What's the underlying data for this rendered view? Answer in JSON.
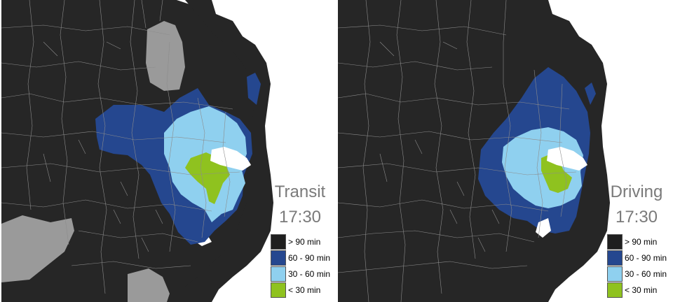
{
  "colors": {
    "background": "#262626",
    "water": "#ffffff",
    "boundary": "#8c8c8c",
    "grey_land": "#9a9a9a",
    "gt90": "#1f1f1f",
    "c60_90": "#25478f",
    "c30_60": "#8fd0ef",
    "lt30": "#8fc21f"
  },
  "maps": [
    {
      "id": "transit",
      "mode_title": "Transit",
      "time": "17:30"
    },
    {
      "id": "driving",
      "mode_title": "Driving",
      "time": "17:30"
    }
  ],
  "legend": {
    "items": [
      {
        "label": "> 90 min",
        "color": "#1f1f1f"
      },
      {
        "label": "60 - 90 min",
        "color": "#25478f"
      },
      {
        "label": "30 - 60 min",
        "color": "#8fd0ef"
      },
      {
        "label": "< 30 min",
        "color": "#8fc21f"
      }
    ]
  }
}
